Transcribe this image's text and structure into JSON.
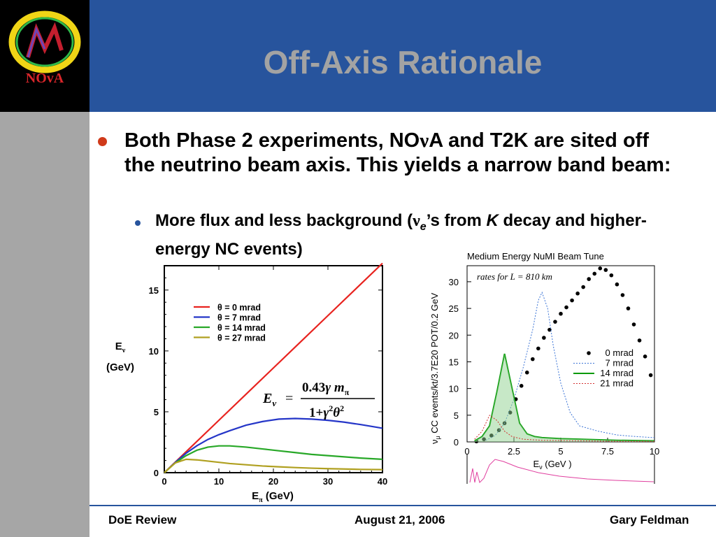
{
  "slide": {
    "title": "Off-Axis Rationale",
    "logo_text": "NOvA",
    "bullet1": {
      "part1": "Both Phase 2 experiments, NO",
      "nu": "ν",
      "part2": "A and T2K are sited off the neutrino beam axis.  This yields a narrow band beam:"
    },
    "bullet2": {
      "part1": "More flux and less background (",
      "nu": "ν",
      "sub": "e",
      "part2": "’s from ",
      "k": "K",
      "part3": " decay and higher-energy NC events)"
    },
    "footer": {
      "left": "DoE Review",
      "center": "August 21, 2006",
      "right": "Gary Feldman"
    },
    "colors": {
      "header": "#27549d",
      "title": "#a3a3a3",
      "sidebar": "#a6a6a6",
      "bullet_red": "#d03a1a"
    }
  },
  "chart_data": [
    {
      "type": "line",
      "xlabel": "Eπ (GeV)",
      "ylabel": "Eν (GeV)",
      "xlim": [
        0,
        40
      ],
      "ylim": [
        0,
        17
      ],
      "xticks": [
        "0",
        "10",
        "20",
        "30",
        "40"
      ],
      "yticks": [
        "0",
        "5",
        "10",
        "15"
      ],
      "legend_position": "top-left",
      "formula": "Eν = 0.43 γ mπ / (1 + γ² θ²)",
      "series": [
        {
          "name": "θ = 0 mrad",
          "color": "#e8231f",
          "x": [
            0,
            5,
            10,
            15,
            20,
            25,
            30,
            35,
            40
          ],
          "y": [
            0,
            2.15,
            4.3,
            6.45,
            8.6,
            10.75,
            12.9,
            15.05,
            17.2
          ]
        },
        {
          "name": "θ = 7 mrad",
          "color": "#2536c8",
          "x": [
            0,
            2,
            4,
            6,
            8,
            10,
            12,
            15,
            18,
            21,
            24,
            27,
            30,
            33,
            36,
            40
          ],
          "y": [
            0,
            0.84,
            1.6,
            2.22,
            2.73,
            3.12,
            3.45,
            3.9,
            4.2,
            4.4,
            4.45,
            4.4,
            4.3,
            4.15,
            3.95,
            3.65
          ]
        },
        {
          "name": "θ = 14 mrad",
          "color": "#28a828",
          "x": [
            0,
            2,
            4,
            6,
            8,
            10,
            12,
            15,
            18,
            21,
            24,
            27,
            30,
            33,
            36,
            40
          ],
          "y": [
            0,
            0.8,
            1.4,
            1.85,
            2.1,
            2.2,
            2.2,
            2.1,
            1.95,
            1.8,
            1.65,
            1.5,
            1.4,
            1.3,
            1.2,
            1.1
          ]
        },
        {
          "name": "θ = 27 mrad",
          "color": "#b0a020",
          "x": [
            0,
            2,
            4,
            6,
            8,
            10,
            12,
            15,
            18,
            21,
            24,
            27,
            30,
            33,
            36,
            40
          ],
          "y": [
            0,
            0.8,
            1.1,
            1.05,
            0.95,
            0.85,
            0.75,
            0.65,
            0.55,
            0.48,
            0.42,
            0.37,
            0.33,
            0.3,
            0.27,
            0.25
          ]
        }
      ]
    },
    {
      "type": "scatter",
      "title": "Medium Energy NuMI Beam Tune",
      "annotation": "rates for L = 810 km",
      "xlabel": "Eν (GeV)",
      "ylabel": "νμ CC events/kt/3.7E20 POT/0.2 GeV",
      "xlim": [
        0,
        10
      ],
      "ylim": [
        0,
        33
      ],
      "xticks": [
        "0",
        "2.5",
        "5",
        "7.5",
        "10"
      ],
      "yticks": [
        "0",
        "5",
        "10",
        "15",
        "20",
        "25",
        "30"
      ],
      "legend_position": "right",
      "series": [
        {
          "name": "0 mrad",
          "color": "#000000",
          "x": [
            0.5,
            0.9,
            1.3,
            1.7,
            2.0,
            2.3,
            2.6,
            2.9,
            3.2,
            3.5,
            3.8,
            4.1,
            4.4,
            4.7,
            5.0,
            5.3,
            5.6,
            5.9,
            6.2,
            6.5,
            6.8,
            7.1,
            7.4,
            7.7,
            8.0,
            8.3,
            8.6,
            8.9,
            9.2,
            9.5,
            9.8
          ],
          "y": [
            0.1,
            0.5,
            1.2,
            2.2,
            3.5,
            5.5,
            8,
            10.5,
            13,
            15.5,
            17.5,
            19.5,
            21,
            22.5,
            24,
            25.2,
            26.5,
            27.8,
            29,
            30.5,
            31.5,
            32.5,
            32.2,
            31.2,
            29.5,
            27.5,
            25,
            22,
            19,
            16,
            12.5
          ]
        },
        {
          "name": "7 mrad",
          "color": "#3b74d6",
          "x": [
            1.0,
            1.5,
            2.0,
            2.5,
            3.0,
            3.5,
            3.8,
            4.0,
            4.3,
            4.6,
            5.0,
            5.5,
            6.0,
            7.0,
            8.0,
            9.0,
            10.0
          ],
          "y": [
            0.3,
            1.2,
            3.5,
            8,
            14,
            21,
            26.5,
            28,
            25,
            18,
            11,
            5.5,
            3,
            2,
            1.3,
            1,
            0.8
          ]
        },
        {
          "name": "14 mrad",
          "color": "#0a9a0a",
          "x": [
            0.4,
            0.8,
            1.2,
            1.6,
            2.0,
            2.4,
            2.8,
            3.2,
            3.6,
            4.0,
            5.0,
            6.0,
            8.0,
            10.0
          ],
          "y": [
            0.2,
            1,
            3,
            9.5,
            16.5,
            10,
            3.5,
            1.5,
            1,
            0.8,
            0.6,
            0.5,
            0.3,
            0.2
          ]
        },
        {
          "name": "21 mrad",
          "color": "#d23030",
          "x": [
            0.4,
            0.8,
            1.2,
            1.6,
            2.0,
            2.4,
            3.0,
            4.0,
            6.0,
            8.0,
            10.0
          ],
          "y": [
            0.5,
            2,
            5,
            4,
            2,
            1,
            0.5,
            0.3,
            0.2,
            0.1,
            0.1
          ]
        }
      ]
    }
  ]
}
